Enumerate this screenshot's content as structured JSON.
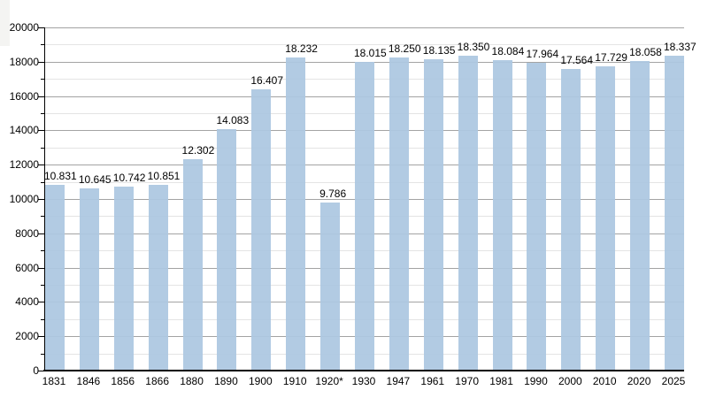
{
  "chart_data": {
    "type": "bar",
    "title": "",
    "xlabel": "",
    "ylabel": "",
    "categories": [
      "1831",
      "1846",
      "1856",
      "1866",
      "1880",
      "1890",
      "1900",
      "1910",
      "1920*",
      "1930",
      "1947",
      "1961",
      "1970",
      "1981",
      "1990",
      "2000",
      "2010",
      "2020",
      "2025"
    ],
    "values": [
      10831,
      10645,
      10742,
      10851,
      12302,
      14083,
      16407,
      18232,
      9786,
      18015,
      18250,
      18135,
      18350,
      18084,
      17964,
      17564,
      17729,
      18058,
      18337
    ],
    "value_labels": [
      "10.831",
      "10.645",
      "10.742",
      "10.851",
      "12.302",
      "14.083",
      "16.407",
      "18.232",
      "9.786",
      "18.015",
      "18.250",
      "18.135",
      "18.350",
      "18.084",
      "17.964",
      "17.564",
      "17.729",
      "18.058",
      "18.337"
    ],
    "ylim": [
      0,
      20000
    ],
    "y_major_step": 2000,
    "y_minor_step": 1000,
    "y_tick_labels": [
      "0",
      "2000",
      "4000",
      "6000",
      "8000",
      "10000",
      "12000",
      "14000",
      "16000",
      "18000",
      "20000"
    ],
    "grid": "major and minor horizontal gridlines",
    "legend": false,
    "colors": {
      "bar_fill": "#b2cbe3",
      "bar_fill_rgba": "rgba(172,199,225,0.93)",
      "grid_major": "#a3a3a3",
      "grid_minor": "#e4e4e4",
      "axis": "#000000",
      "text": "#000000",
      "background": "#ffffff"
    }
  }
}
